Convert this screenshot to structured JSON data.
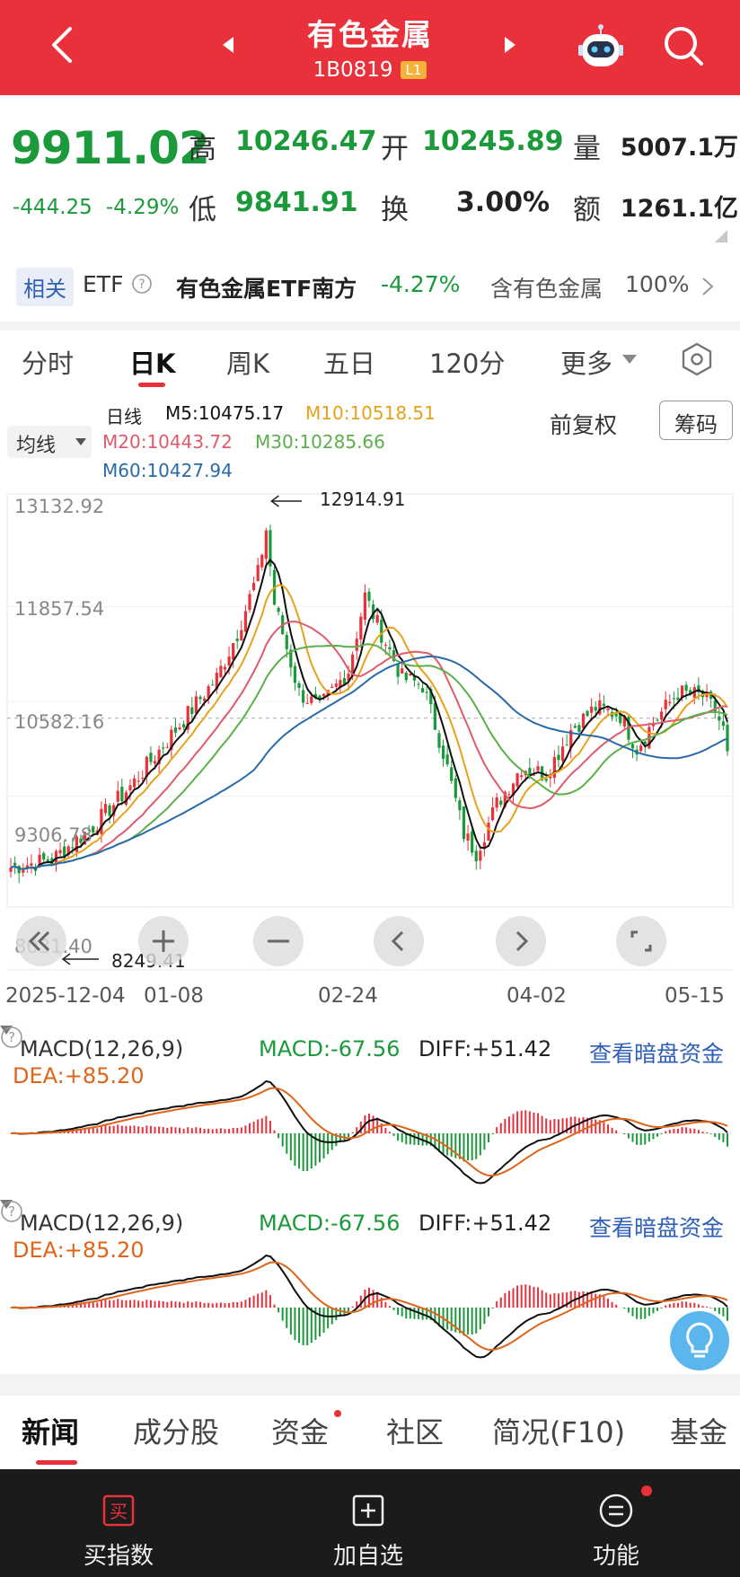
{
  "header": {
    "title": "有色金属",
    "code": "1B0819",
    "level": "L1"
  },
  "quote": {
    "price": "9911.02",
    "change": "-444.25",
    "change_pct": "-4.29%",
    "high_label": "高",
    "high": "10246.47",
    "low_label": "低",
    "low": "9841.91",
    "open_label": "开",
    "open": "10245.89",
    "turnover_label": "换",
    "turnover": "3.00%",
    "volume_label": "量",
    "volume": "5007.1万",
    "amount_label": "额",
    "amount": "1261.1亿"
  },
  "related": {
    "tag": "相关",
    "etf_label": "ETF",
    "name": "有色金属ETF南方",
    "pct": "-4.27%",
    "holding_label": "含有色金属",
    "holding_pct": "100%"
  },
  "tabs": [
    "分时",
    "日K",
    "周K",
    "五日",
    "120分",
    "更多"
  ],
  "legend": {
    "avg_button": "均线",
    "daily": "日线",
    "m5": "M5:10475.17",
    "m10": "M10:10518.51",
    "m20": "M20:10443.72",
    "m30": "M30:10285.66",
    "m60": "M60:10427.94",
    "adjust": "前复权",
    "chips": "筹码"
  },
  "chart_data": {
    "type": "candlestick",
    "y_ticks": [
      "13132.92",
      "11857.54",
      "10582.16",
      "9306.78",
      "8031.40"
    ],
    "ylim": [
      8031.4,
      13132.92
    ],
    "x_ticks": [
      "2025-12-04",
      "01-08",
      "02-24",
      "04-02",
      "05-15"
    ],
    "annotations": {
      "max": "12914.91",
      "min": "8249.41"
    },
    "reference_price": 10355.27,
    "ma_colors": {
      "M5": "#111111",
      "M10": "#e8a21a",
      "M20": "#e05a6a",
      "M30": "#5bb04a",
      "M60": "#2a6aa8"
    },
    "up_color": "#e8313b",
    "down_color": "#1a9a3a"
  },
  "macd": {
    "title": "MACD(12,26,9)",
    "macd": "MACD:-67.56",
    "diff": "DIFF:+51.42",
    "dea": "DEA:+85.20",
    "link": "查看暗盘资金"
  },
  "bottom_tabs": [
    "新闻",
    "成分股",
    "资金",
    "社区",
    "简况(F10)",
    "基金"
  ],
  "bottom_bar": {
    "buy": "买指数",
    "buy_icon": "买",
    "add": "加自选",
    "func": "功能"
  }
}
